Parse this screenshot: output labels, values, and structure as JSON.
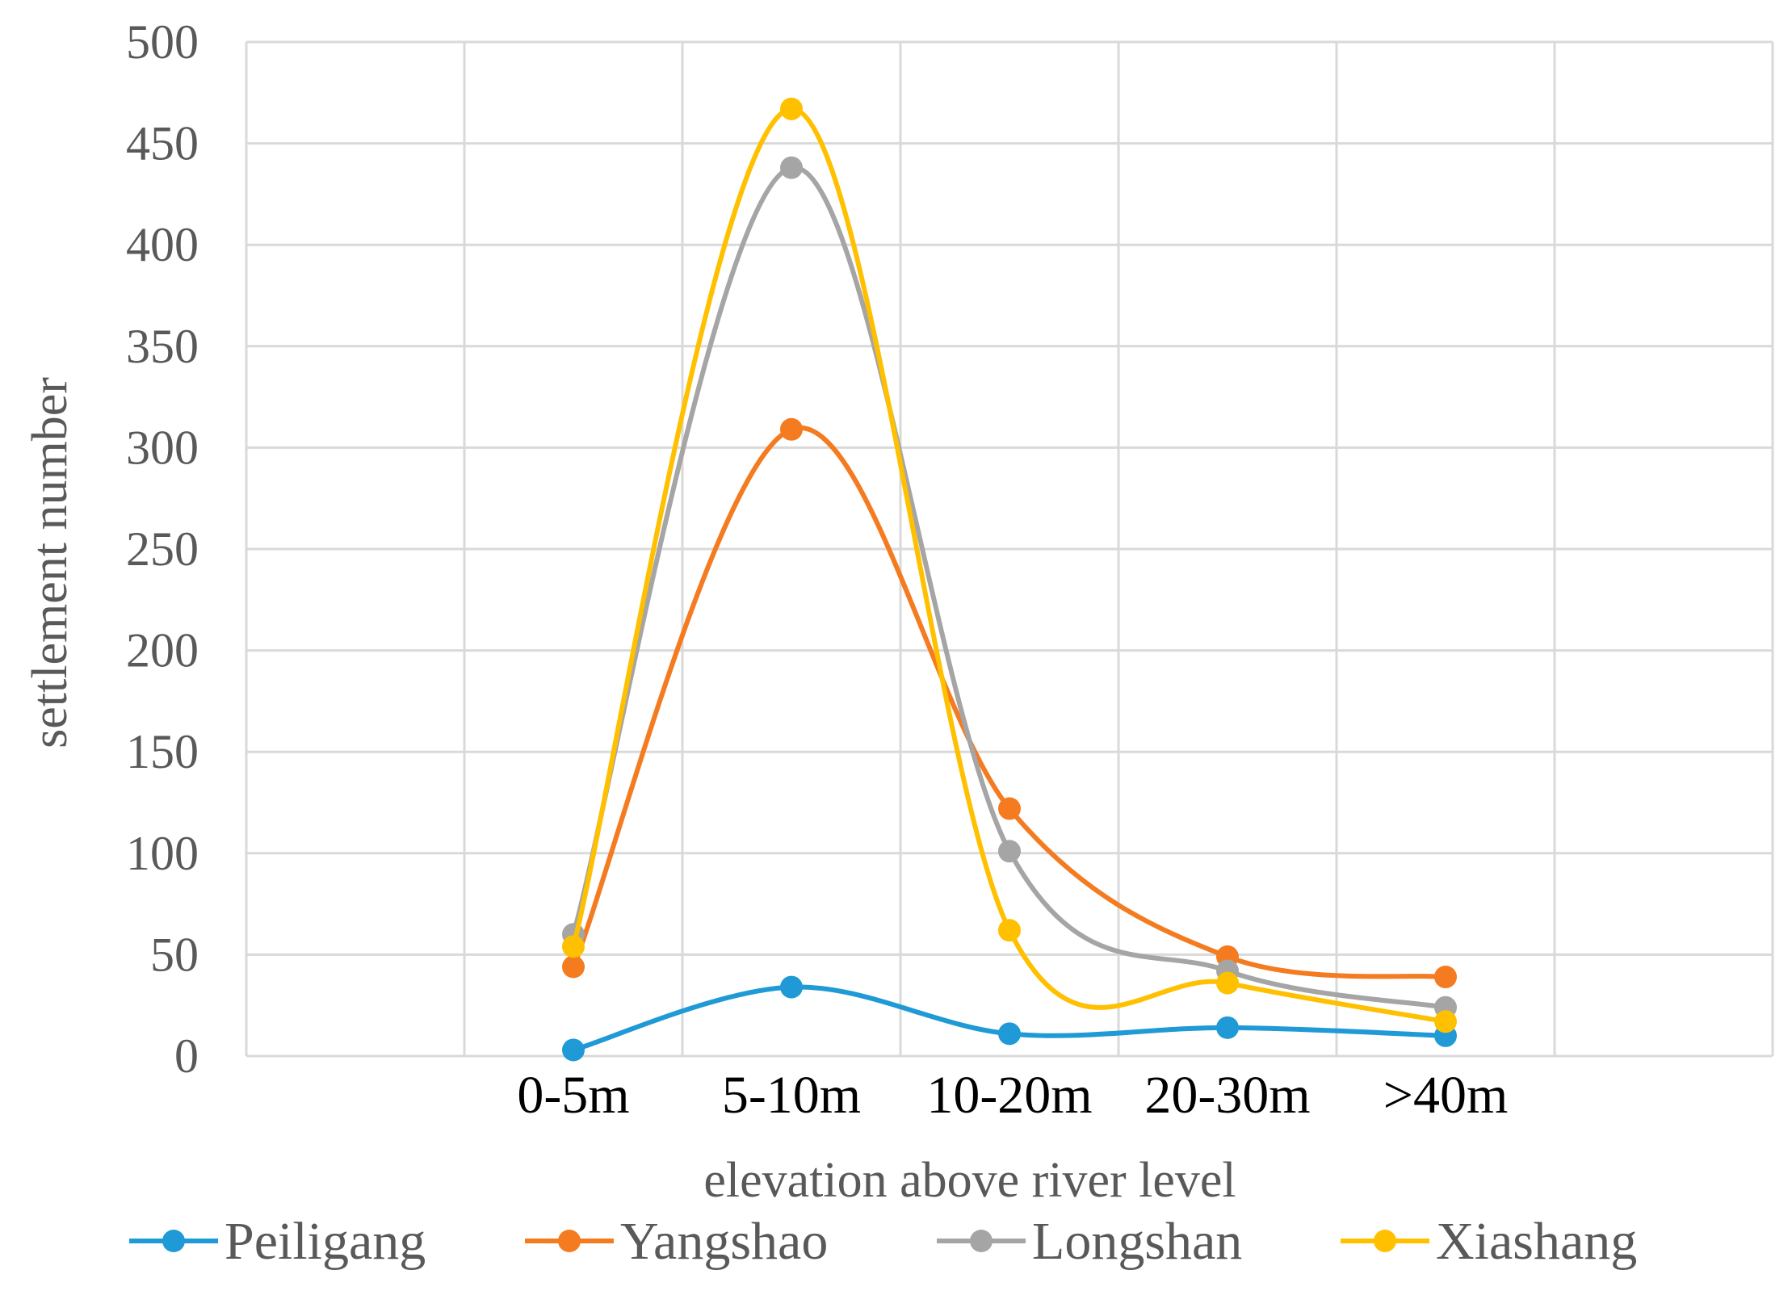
{
  "chart_data": {
    "type": "line",
    "smooth": true,
    "categories": [
      "0-5m",
      "5-10m",
      "10-20m",
      "20-30m",
      ">40m"
    ],
    "series": [
      {
        "name": "Peiligang",
        "color": "#1f9ad6",
        "values": [
          3,
          34,
          11,
          14,
          10
        ]
      },
      {
        "name": "Yangshao",
        "color": "#f47b20",
        "values": [
          44,
          309,
          122,
          49,
          39
        ]
      },
      {
        "name": "Longshan",
        "color": "#a5a5a5",
        "values": [
          60,
          438,
          101,
          42,
          24
        ]
      },
      {
        "name": "Xiashang",
        "color": "#ffc000",
        "values": [
          54,
          467,
          62,
          36,
          17
        ]
      }
    ],
    "xlabel": "elevation above river level",
    "ylabel": "settlement number",
    "ylim": [
      0,
      500
    ],
    "yticks": [
      0,
      50,
      100,
      150,
      200,
      250,
      300,
      350,
      400,
      450,
      500
    ],
    "grid": true,
    "legend": "bottom"
  }
}
